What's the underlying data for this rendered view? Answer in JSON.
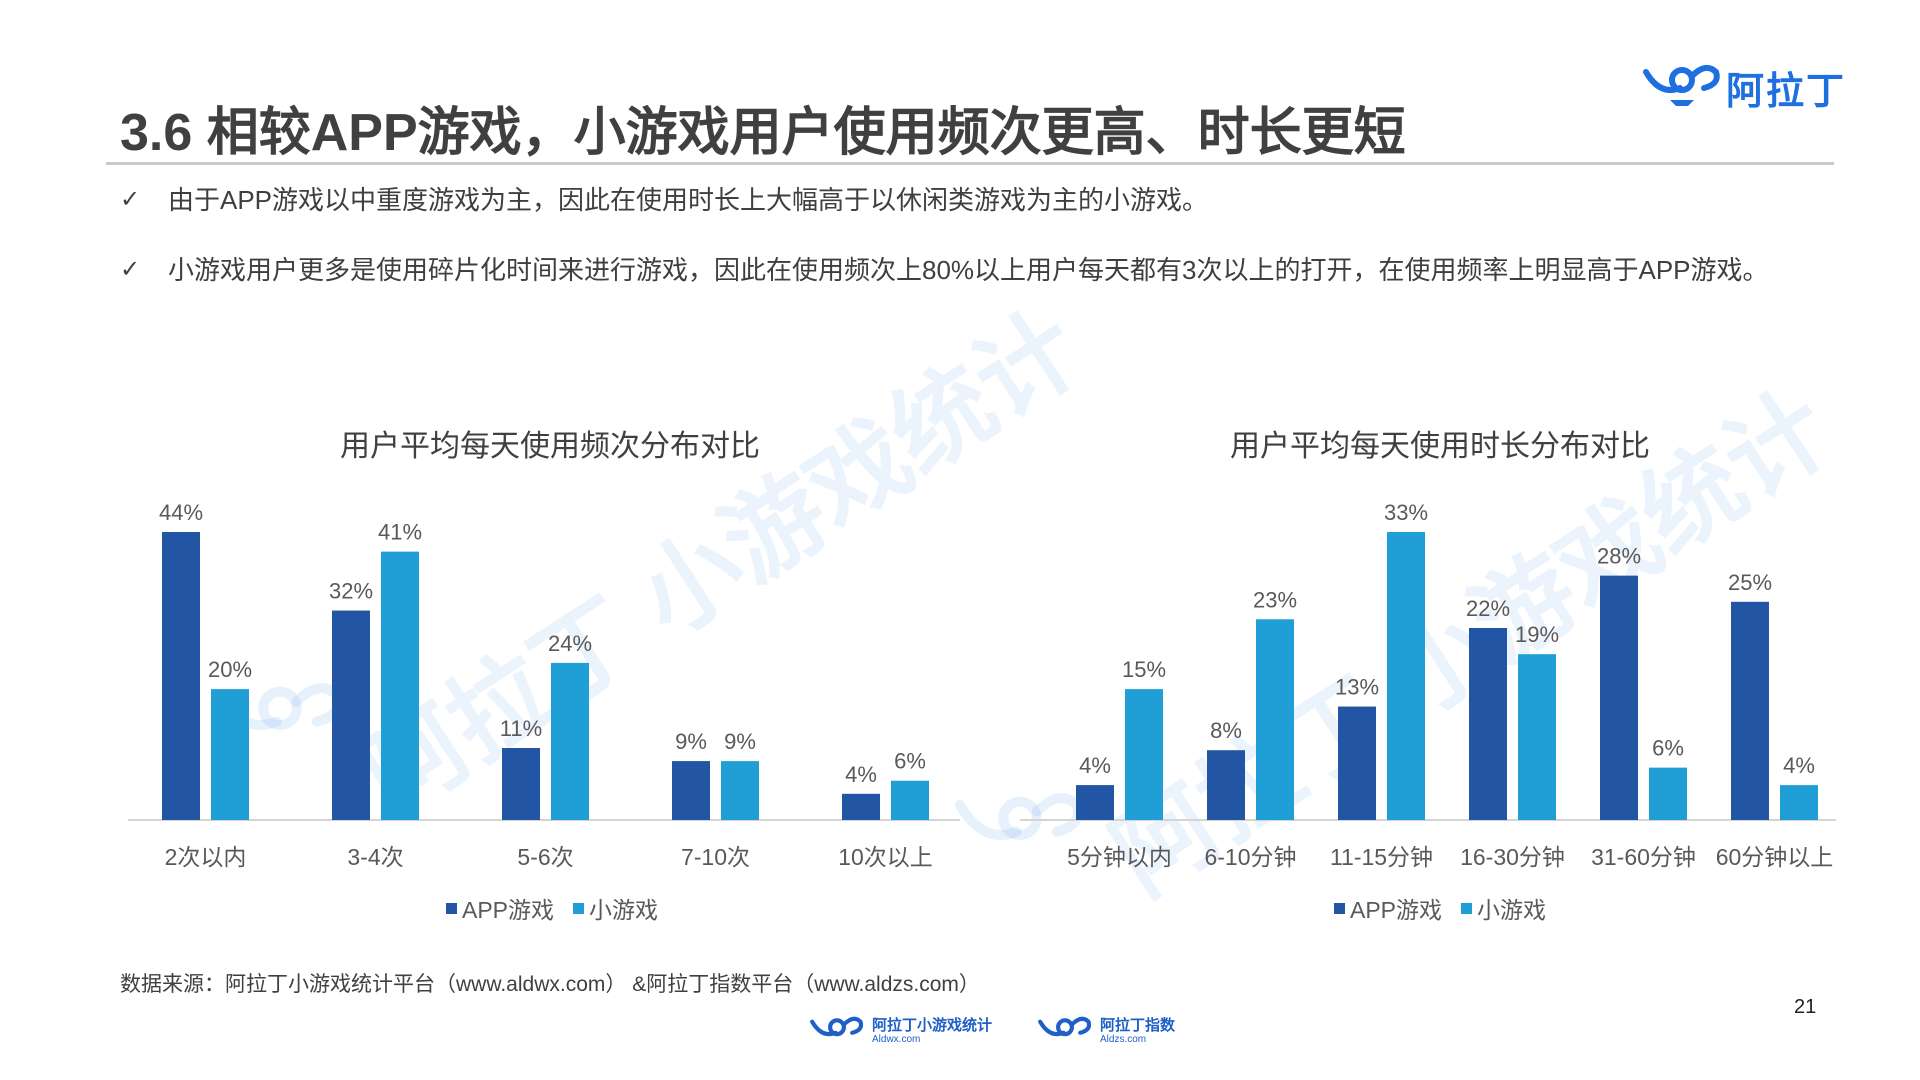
{
  "brand": {
    "name": "阿拉丁",
    "color": "#1e6fe0"
  },
  "title": "3.6 相较APP游戏，小游戏用户使用频次更高、时长更短",
  "bullets": [
    {
      "icon": "check-icon",
      "text": "由于APP游戏以中重度游戏为主，因此在使用时长上大幅高于以休闲类游戏为主的小游戏。"
    },
    {
      "icon": "check-icon",
      "text": "小游戏用户更多是使用碎片化时间来进行游戏，因此在使用频次上80%以上用户每天都有3次以上的打开，在使用频率上明显高于APP游戏。"
    }
  ],
  "watermark": "阿拉丁 小游戏统计",
  "chart_data": [
    {
      "type": "bar",
      "title": "用户平均每天使用频次分布对比",
      "categories": [
        "2次以内",
        "3-4次",
        "5-6次",
        "7-10次",
        "10次以上"
      ],
      "series": [
        {
          "name": "APP游戏",
          "values": [
            44,
            32,
            11,
            9,
            4
          ],
          "labels": [
            "44%",
            "32%",
            "11%",
            "9%",
            "4%"
          ],
          "color": "#2255a4"
        },
        {
          "name": "小游戏",
          "values": [
            20,
            41,
            24,
            9,
            6
          ],
          "labels": [
            "20%",
            "41%",
            "24%",
            "9%",
            "6%"
          ],
          "color": "#1f9fd6"
        }
      ],
      "ylim": [
        0,
        44
      ],
      "legend": "bottom",
      "grid": false
    },
    {
      "type": "bar",
      "title": "用户平均每天使用时长分布对比",
      "categories": [
        "5分钟以内",
        "6-10分钟",
        "11-15分钟",
        "16-30分钟",
        "31-60分钟",
        "60分钟以上"
      ],
      "series": [
        {
          "name": "APP游戏",
          "values": [
            4,
            8,
            13,
            22,
            28,
            25
          ],
          "labels": [
            "4%",
            "8%",
            "13%",
            "22%",
            "28%",
            "25%"
          ],
          "color": "#2255a4"
        },
        {
          "name": "小游戏",
          "values": [
            15,
            23,
            33,
            19,
            6,
            4
          ],
          "labels": [
            "15%",
            "23%",
            "33%",
            "19%",
            "6%",
            "4%"
          ],
          "color": "#1f9fd6"
        }
      ],
      "ylim": [
        0,
        33
      ],
      "legend": "bottom",
      "grid": false
    }
  ],
  "source": "数据来源：阿拉丁小游戏统计平台（www.aldwx.com） &阿拉丁指数平台（www.aldzs.com）",
  "page_number": "21",
  "footer": [
    {
      "name": "阿拉丁小游戏统计",
      "domain": "Aldwx.com"
    },
    {
      "name": "阿拉丁指数",
      "domain": "Aldzs.com"
    }
  ]
}
